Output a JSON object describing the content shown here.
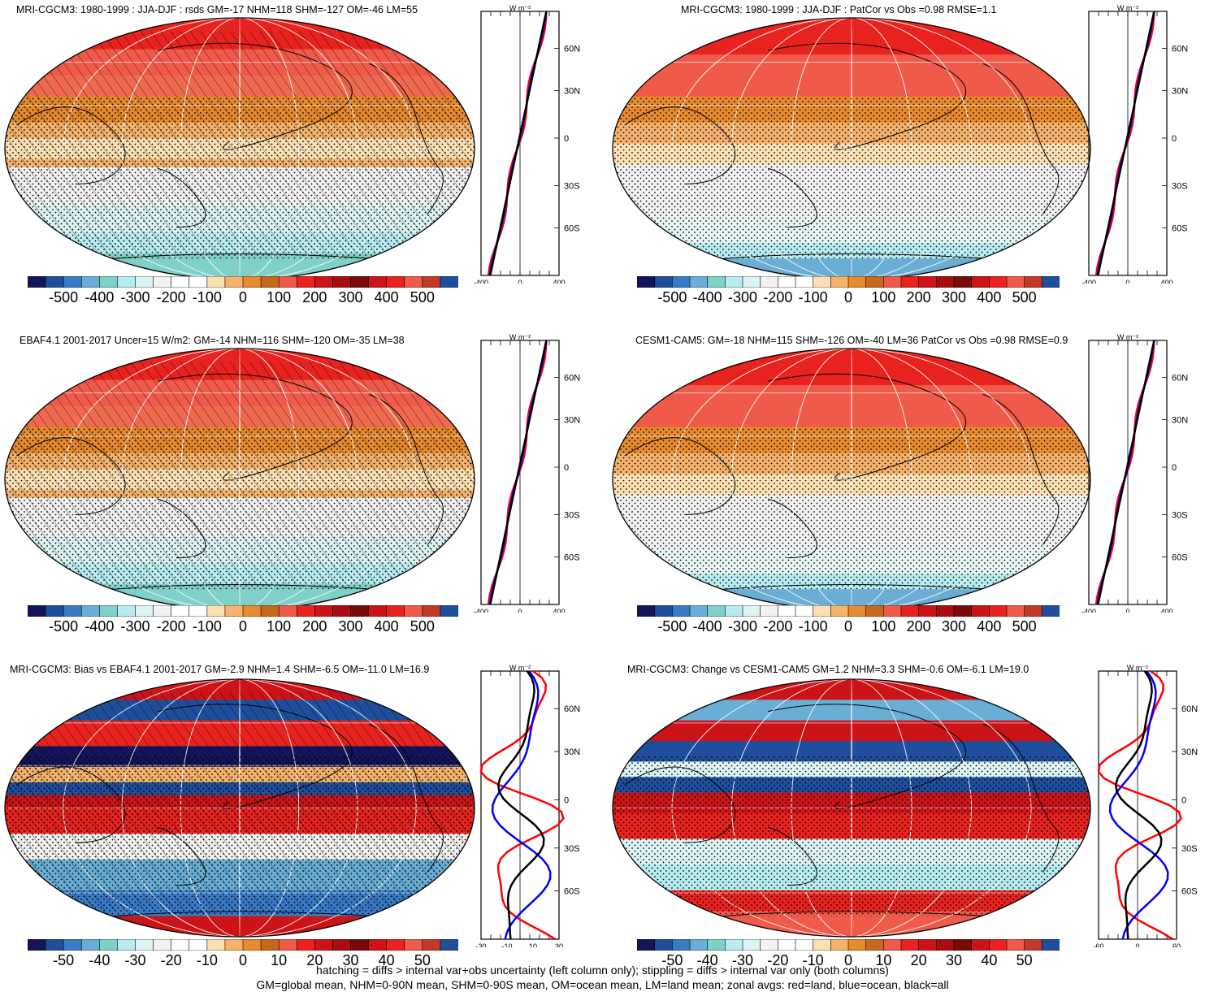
{
  "panels": [
    {
      "id": "p1",
      "title": "MRI-CGCM3: 1980-1999 : JJA-DJF : rsds GM=-17 NHM=118 SHM=-127 OM=-46 LM=55",
      "colorbar_labels": [
        "-500",
        "-400",
        "-300",
        "-200",
        "-100",
        "0",
        "100",
        "200",
        "300",
        "400",
        "500"
      ],
      "zonal_xticks": [
        "-400",
        "0",
        "400"
      ],
      "zonal_unit": "W m⁻²",
      "lat_ticks": [
        "60N",
        "30N",
        "0",
        "30S",
        "60S"
      ],
      "pattern": "seasonal",
      "hatched": true
    },
    {
      "id": "p2",
      "title": "MRI-CGCM3: 1980-1999 : JJA-DJF : PatCor vs Obs =0.98 RMSE=1.1",
      "colorbar_labels": [
        "-500",
        "-400",
        "-300",
        "-200",
        "-100",
        "0",
        "100",
        "200",
        "300",
        "400",
        "500"
      ],
      "zonal_xticks": [
        "-400",
        "0",
        "400"
      ],
      "zonal_unit": "W m⁻²",
      "lat_ticks": [
        "60N",
        "30N",
        "0",
        "30S",
        "60S"
      ],
      "pattern": "seasonal",
      "hatched": false
    },
    {
      "id": "p3",
      "title": "EBAF4.1 2001-2017 Uncer=15 W/m2: GM=-14 NHM=116 SHM=-120 OM=-35 LM=38",
      "colorbar_labels": [
        "-500",
        "-400",
        "-300",
        "-200",
        "-100",
        "0",
        "100",
        "200",
        "300",
        "400",
        "500"
      ],
      "zonal_xticks": [
        "-400",
        "0",
        "400"
      ],
      "zonal_unit": "W m⁻²",
      "lat_ticks": [
        "60N",
        "30N",
        "0",
        "30S",
        "60S"
      ],
      "pattern": "seasonal",
      "hatched": true
    },
    {
      "id": "p4",
      "title": "CESM1-CAM5: GM=-18 NHM=115 SHM=-126 OM=-40 LM=36 PatCor vs Obs =0.98 RMSE=0.9",
      "colorbar_labels": [
        "-500",
        "-400",
        "-300",
        "-200",
        "-100",
        "0",
        "100",
        "200",
        "300",
        "400",
        "500"
      ],
      "zonal_xticks": [
        "-400",
        "0",
        "400"
      ],
      "zonal_unit": "W m⁻²",
      "lat_ticks": [
        "60N",
        "30N",
        "0",
        "30S",
        "60S"
      ],
      "pattern": "seasonal",
      "hatched": false
    },
    {
      "id": "p5",
      "title": "MRI-CGCM3: Bias vs EBAF4.1 2001-2017 GM=-2.9 NHM=1.4 SHM=-6.5 OM=-11.0 LM=16.9",
      "colorbar_labels": [
        "-50",
        "-40",
        "-30",
        "-20",
        "-10",
        "0",
        "10",
        "20",
        "30",
        "40",
        "50"
      ],
      "zonal_xticks": [
        "-30",
        "-10",
        "10",
        "30"
      ],
      "zonal_unit": "W m⁻²",
      "lat_ticks": [
        "60N",
        "30N",
        "0",
        "30S",
        "60S"
      ],
      "pattern": "bias",
      "hatched": true
    },
    {
      "id": "p6",
      "title": "MRI-CGCM3: Change vs CESM1-CAM5 GM=1.2 NHM=3.3 SHM=-0.6 OM=-6.1 LM=19.0",
      "colorbar_labels": [
        "-50",
        "-40",
        "-30",
        "-20",
        "-10",
        "0",
        "10",
        "20",
        "30",
        "40",
        "50"
      ],
      "zonal_xticks": [
        "-60",
        "0",
        "60"
      ],
      "zonal_unit": "W m⁻²",
      "lat_ticks": [
        "60N",
        "30N",
        "0",
        "30S",
        "60S"
      ],
      "pattern": "change",
      "hatched": false
    }
  ],
  "colorbar_colors": [
    "#14145a",
    "#1f4f9c",
    "#3a7bc8",
    "#6aaed6",
    "#7fd0c8",
    "#b7ecf0",
    "#dcf4f4",
    "#f2f2f2",
    "#ffffff",
    "#ffffff",
    "#fde0b2",
    "#f6b36d",
    "#e88a2e",
    "#c8681c",
    "#f05a4a",
    "#e8221e",
    "#cc1418",
    "#a80d12",
    "#7a0a0a",
    "#cc1418",
    "#e8221e",
    "#f05a4a",
    "#c0392b",
    "#1f4f9c"
  ],
  "zonal_series_colors": {
    "land": "#ff0000",
    "ocean": "#0000ff",
    "all": "#000000"
  },
  "footer": {
    "line1": "hatching = diffs > internal var+obs uncertainty (left column only); stippling = diffs > internal var only (both columns)",
    "line2": "GM=global mean, NHM=0-90N mean, SHM=0-90S mean, OM=ocean mean, LM=land mean; zonal avgs: red=land, blue=ocean, black=all"
  }
}
